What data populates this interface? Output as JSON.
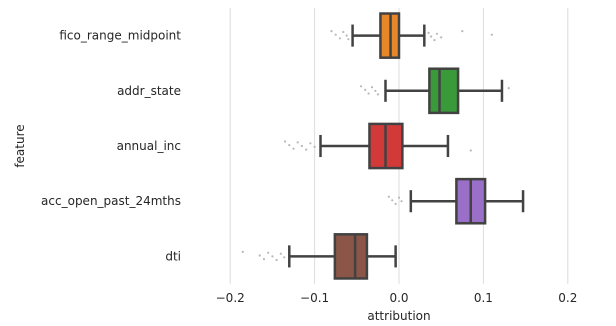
{
  "chart_data": {
    "type": "box",
    "orientation": "horizontal",
    "xlabel": "attribution",
    "ylabel": "feature",
    "xlim": [
      -0.25,
      0.25
    ],
    "xticks": [
      -0.2,
      -0.1,
      0.0,
      0.1,
      0.2
    ],
    "xtick_labels": [
      "−0.2",
      "−0.1",
      "0.0",
      "0.1",
      "0.2"
    ],
    "grid": "vertical",
    "categories": [
      "fico_range_midpoint",
      "addr_state",
      "annual_inc",
      "acc_open_past_24mths",
      "dti"
    ],
    "boxes": [
      {
        "label": "fico_range_midpoint",
        "color": "#e8862a",
        "whislo": -0.055,
        "q1": -0.022,
        "med": -0.01,
        "q3": 0.0,
        "whishi": 0.03,
        "outliers": [
          -0.08,
          -0.075,
          -0.07,
          -0.066,
          -0.062,
          -0.06,
          0.035,
          0.038,
          0.042,
          0.045,
          0.05,
          0.075,
          0.11
        ]
      },
      {
        "label": "addr_state",
        "color": "#3a9a3a",
        "whislo": -0.016,
        "q1": 0.036,
        "med": 0.048,
        "q3": 0.07,
        "whishi": 0.122,
        "outliers": [
          -0.045,
          -0.04,
          -0.036,
          -0.032,
          -0.028,
          -0.025,
          0.13
        ]
      },
      {
        "label": "annual_inc",
        "color": "#d23a3a",
        "whislo": -0.093,
        "q1": -0.035,
        "med": -0.016,
        "q3": 0.004,
        "whishi": 0.058,
        "outliers": [
          -0.135,
          -0.13,
          -0.125,
          -0.12,
          -0.115,
          -0.11,
          -0.105,
          -0.1,
          0.085
        ]
      },
      {
        "label": "acc_open_past_24mths",
        "color": "#9a6fc8",
        "whislo": 0.014,
        "q1": 0.068,
        "med": 0.085,
        "q3": 0.102,
        "whishi": 0.147,
        "outliers": [
          -0.012,
          -0.008,
          -0.004,
          0.0,
          0.003
        ]
      },
      {
        "label": "dti",
        "color": "#8b5548",
        "whislo": -0.13,
        "q1": -0.076,
        "med": -0.052,
        "q3": -0.038,
        "whishi": -0.004,
        "outliers": [
          -0.185,
          -0.165,
          -0.16,
          -0.155,
          -0.15,
          -0.145,
          -0.14,
          -0.136
        ]
      }
    ]
  }
}
